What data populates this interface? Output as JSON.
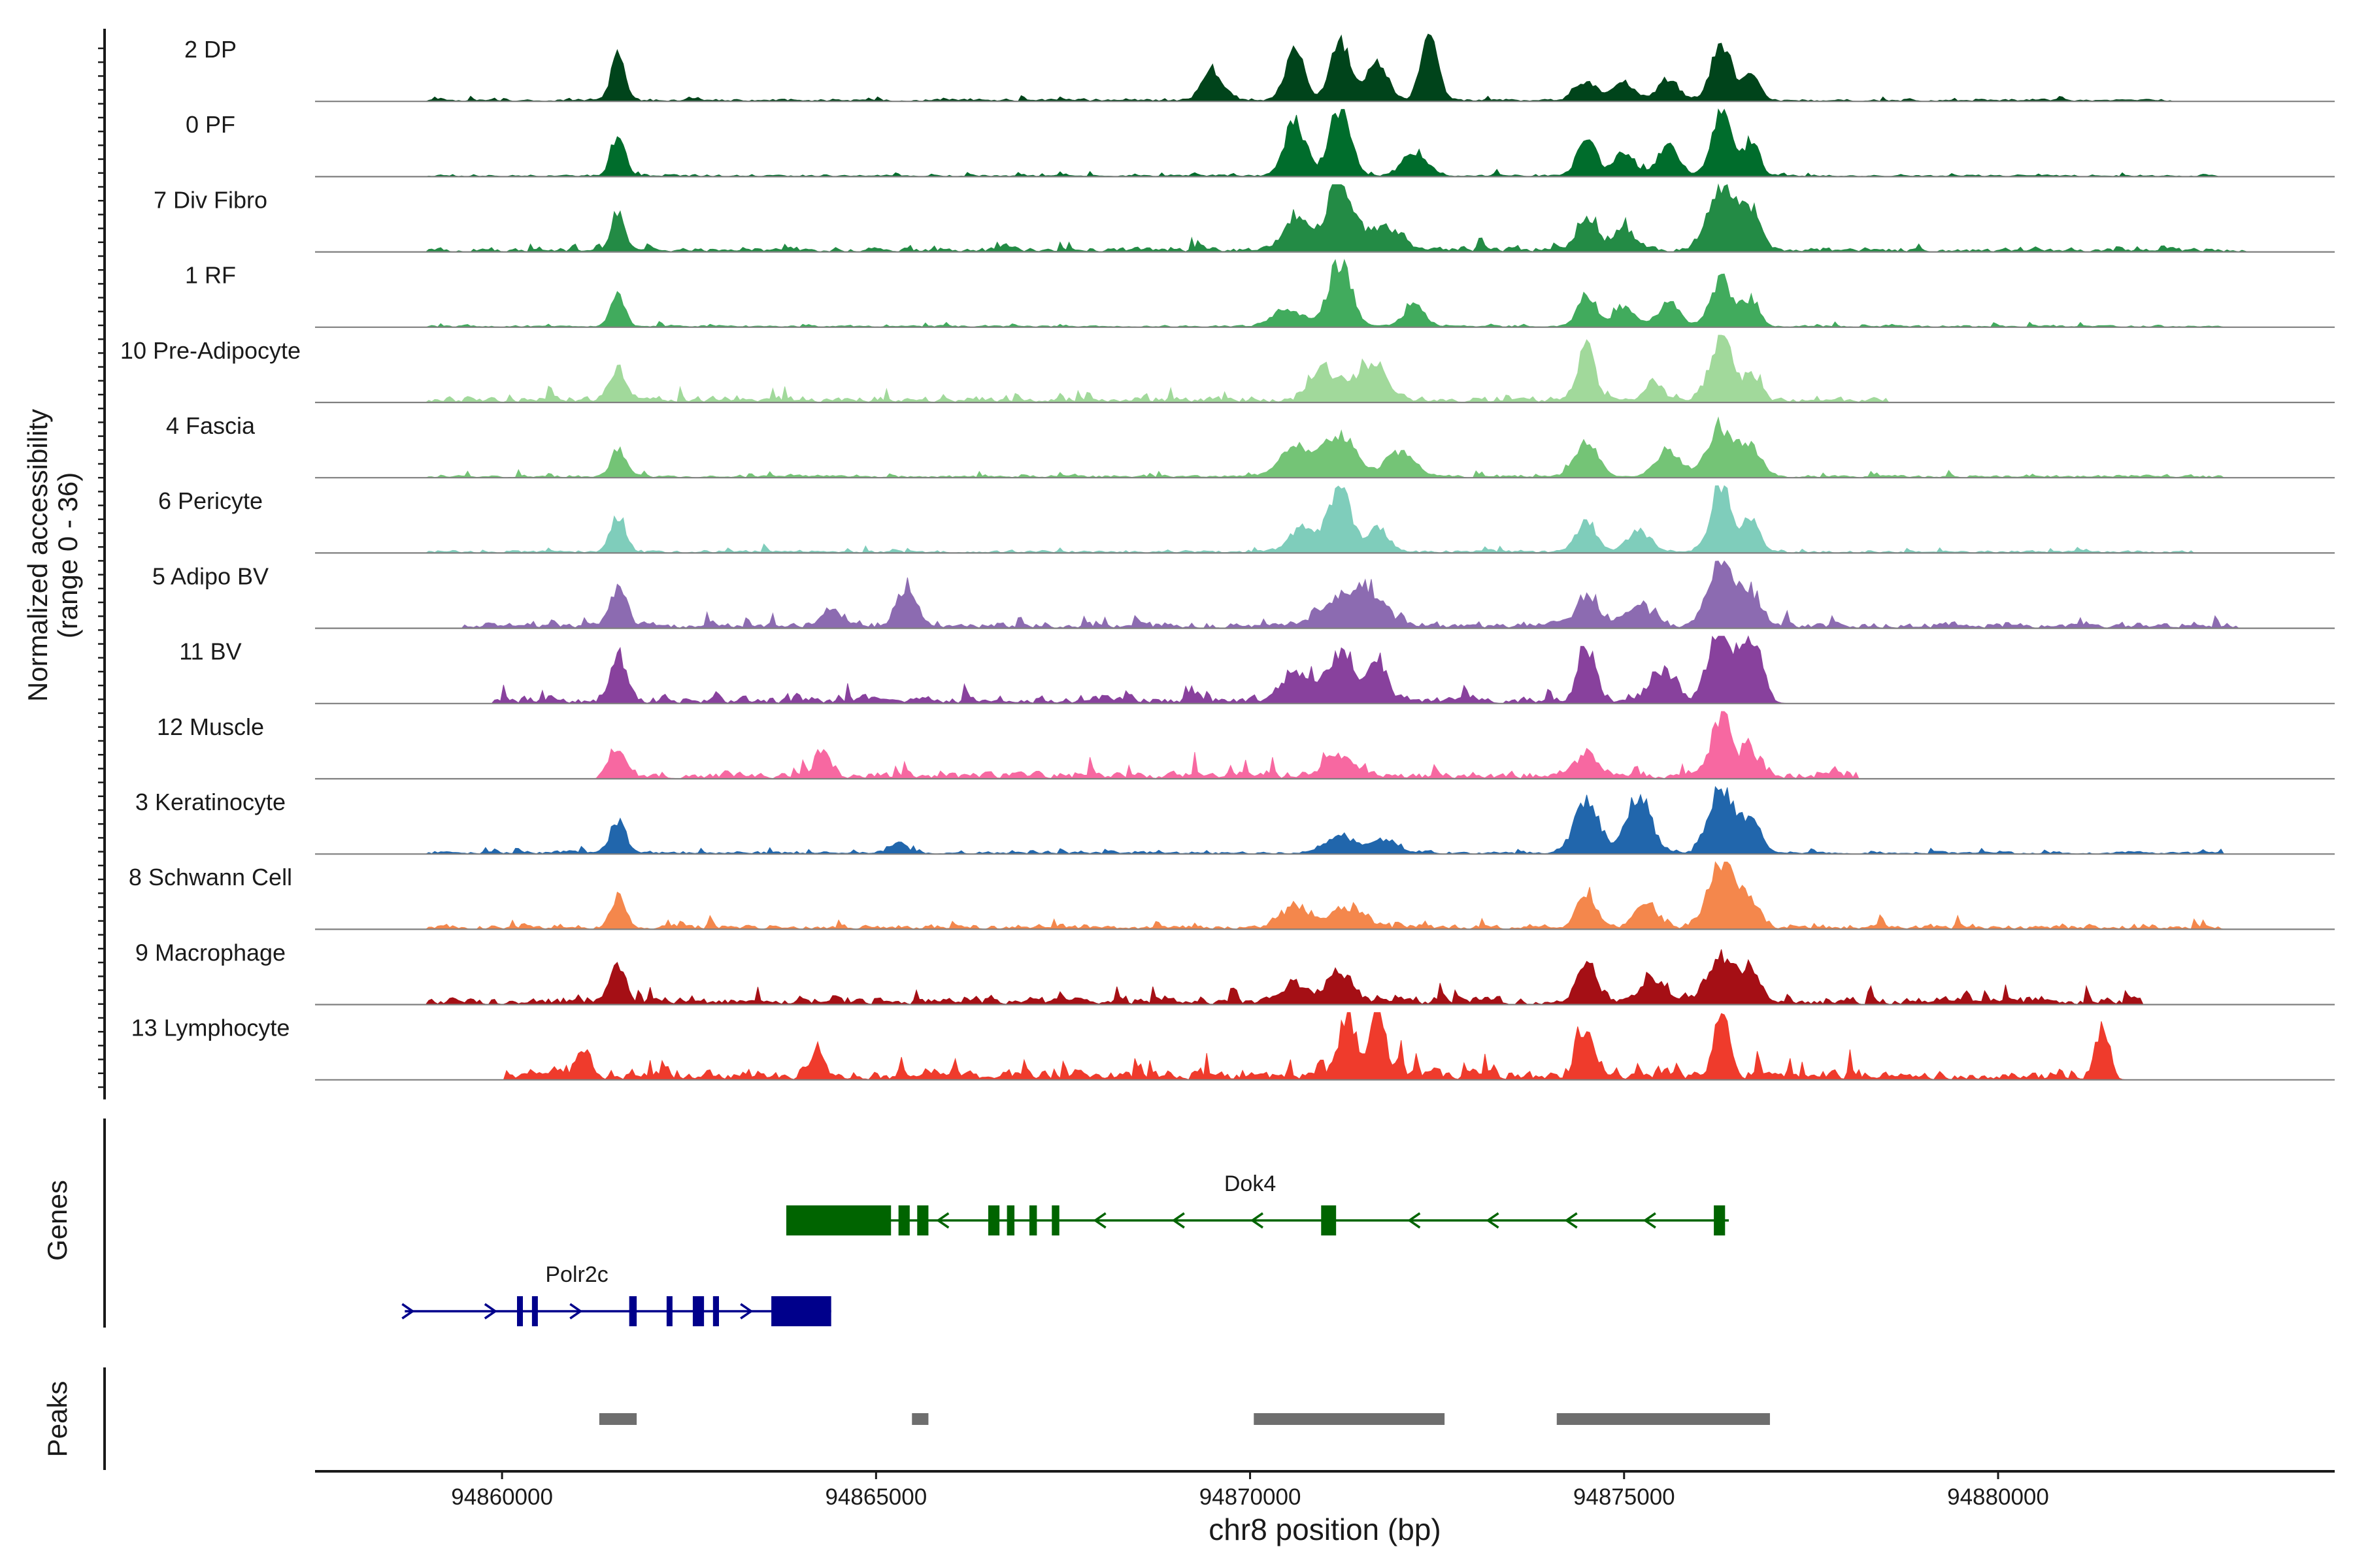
{
  "chart_data": {
    "type": "area",
    "title": "",
    "xlabel": "chr8 position (bp)",
    "ylabel_line1": "Normalized accessibility",
    "ylabel_line2": "(range 0 - 36)",
    "y_range": [
      0,
      36
    ],
    "xlim": [
      94857500,
      94884500
    ],
    "x_ticks": [
      94860000,
      94865000,
      94870000,
      94875000,
      94880000
    ],
    "x_tick_labels": [
      "94860000",
      "94865000",
      "94870000",
      "94875000",
      "94880000"
    ],
    "genes_label": "Genes",
    "peaks_label": "Peaks",
    "tracks": [
      {
        "label": "2 DP",
        "color": "#00441b",
        "peaks": [
          [
            94861550,
            0.75,
            90
          ],
          [
            94869500,
            0.45,
            140
          ],
          [
            94870600,
            0.75,
            130
          ],
          [
            94871200,
            0.85,
            130
          ],
          [
            94871700,
            0.55,
            140
          ],
          [
            94872400,
            1.0,
            110
          ],
          [
            94874500,
            0.25,
            160
          ],
          [
            94875000,
            0.3,
            130
          ],
          [
            94875600,
            0.3,
            140
          ],
          [
            94876300,
            0.85,
            130
          ],
          [
            94876700,
            0.4,
            110
          ]
        ],
        "noise": 0.04,
        "range": [
          94859000,
          94882300
        ]
      },
      {
        "label": "0 PF",
        "color": "#006d2c",
        "peaks": [
          [
            94861550,
            0.62,
            90
          ],
          [
            94870600,
            0.8,
            140
          ],
          [
            94871200,
            1.0,
            140
          ],
          [
            94872200,
            0.35,
            160
          ],
          [
            94874500,
            0.55,
            120
          ],
          [
            94875000,
            0.35,
            140
          ],
          [
            94875600,
            0.45,
            140
          ],
          [
            94876300,
            1.0,
            130
          ],
          [
            94876700,
            0.5,
            110
          ]
        ],
        "noise": 0.03,
        "range": [
          94859000,
          94883000
        ]
      },
      {
        "label": "7 Div Fibro",
        "color": "#238b45",
        "peaks": [
          [
            94861550,
            0.6,
            90
          ],
          [
            94870600,
            0.5,
            160
          ],
          [
            94871200,
            1.0,
            180
          ],
          [
            94871800,
            0.35,
            200
          ],
          [
            94874500,
            0.45,
            140
          ],
          [
            94875000,
            0.3,
            150
          ],
          [
            94876300,
            1.0,
            170
          ],
          [
            94876700,
            0.6,
            130
          ]
        ],
        "noise": 0.07,
        "range": [
          94859000,
          94883300
        ]
      },
      {
        "label": "1 RF",
        "color": "#41ab5d",
        "peaks": [
          [
            94861550,
            0.48,
            90
          ],
          [
            94870500,
            0.25,
            200
          ],
          [
            94871200,
            0.95,
            150
          ],
          [
            94872200,
            0.3,
            140
          ],
          [
            94874500,
            0.5,
            120
          ],
          [
            94875000,
            0.3,
            130
          ],
          [
            94875600,
            0.35,
            140
          ],
          [
            94876300,
            0.7,
            150
          ],
          [
            94876700,
            0.4,
            110
          ]
        ],
        "noise": 0.03,
        "range": [
          94859000,
          94883000
        ]
      },
      {
        "label": "10 Pre-Adipocyte",
        "color": "#a1d99b",
        "peaks": [
          [
            94861550,
            0.45,
            110
          ],
          [
            94871000,
            0.45,
            180
          ],
          [
            94871600,
            0.55,
            200
          ],
          [
            94874500,
            0.8,
            110
          ],
          [
            94875400,
            0.3,
            120
          ],
          [
            94876300,
            1.0,
            140
          ],
          [
            94876700,
            0.4,
            110
          ]
        ],
        "noise": 0.09,
        "range": [
          94859000,
          94878500
        ]
      },
      {
        "label": "4 Fascia",
        "color": "#74c476",
        "peaks": [
          [
            94861550,
            0.4,
            100
          ],
          [
            94870600,
            0.45,
            200
          ],
          [
            94871200,
            0.65,
            200
          ],
          [
            94872000,
            0.35,
            200
          ],
          [
            94874500,
            0.5,
            150
          ],
          [
            94875600,
            0.4,
            160
          ],
          [
            94876300,
            0.7,
            180
          ],
          [
            94876700,
            0.45,
            130
          ]
        ],
        "noise": 0.04,
        "range": [
          94859000,
          94883000
        ]
      },
      {
        "label": "6 Pericyte",
        "color": "#7fcdbb",
        "peaks": [
          [
            94861550,
            0.55,
            100
          ],
          [
            94870700,
            0.35,
            180
          ],
          [
            94871200,
            0.95,
            150
          ],
          [
            94871700,
            0.35,
            140
          ],
          [
            94874500,
            0.45,
            130
          ],
          [
            94875200,
            0.3,
            160
          ],
          [
            94876300,
            1.0,
            140
          ],
          [
            94876700,
            0.45,
            120
          ]
        ],
        "noise": 0.04,
        "range": [
          94859000,
          94882600
        ]
      },
      {
        "label": "5 Adipo BV",
        "color": "#8c6bb1",
        "peaks": [
          [
            94861550,
            0.55,
            110
          ],
          [
            94864400,
            0.3,
            110
          ],
          [
            94865400,
            0.6,
            130
          ],
          [
            94871200,
            0.35,
            240
          ],
          [
            94871600,
            0.45,
            220
          ],
          [
            94874500,
            0.45,
            150
          ],
          [
            94875200,
            0.3,
            180
          ],
          [
            94876300,
            1.0,
            170
          ],
          [
            94876700,
            0.45,
            140
          ]
        ],
        "noise": 0.09,
        "range": [
          94859500,
          94883200
        ]
      },
      {
        "label": "11 BV",
        "color": "#88419d",
        "peaks": [
          [
            94861550,
            0.65,
            100
          ],
          [
            94870600,
            0.45,
            180
          ],
          [
            94871200,
            0.75,
            160
          ],
          [
            94871700,
            0.55,
            140
          ],
          [
            94874500,
            0.8,
            110
          ],
          [
            94875500,
            0.45,
            160
          ],
          [
            94876300,
            1.0,
            170
          ],
          [
            94876700,
            0.8,
            140
          ]
        ],
        "noise": 0.12,
        "range": [
          94859900,
          94877000
        ]
      },
      {
        "label": "12 Muscle",
        "color": "#f768a1",
        "peaks": [
          [
            94861550,
            0.35,
            110
          ],
          [
            94864300,
            0.35,
            100
          ],
          [
            94871200,
            0.3,
            200
          ],
          [
            94874500,
            0.35,
            150
          ],
          [
            94876300,
            0.9,
            130
          ],
          [
            94876700,
            0.35,
            110
          ]
        ],
        "noise": 0.12,
        "range": [
          94861300,
          94878100
        ]
      },
      {
        "label": "3 Keratinocyte",
        "color": "#2166ac",
        "peaks": [
          [
            94861550,
            0.5,
            100
          ],
          [
            94865300,
            0.15,
            120
          ],
          [
            94871200,
            0.25,
            200
          ],
          [
            94871800,
            0.2,
            180
          ],
          [
            94874500,
            0.8,
            160
          ],
          [
            94875200,
            0.85,
            160
          ],
          [
            94876300,
            1.0,
            160
          ],
          [
            94876700,
            0.45,
            130
          ]
        ],
        "noise": 0.04,
        "range": [
          94859000,
          94883000
        ]
      },
      {
        "label": "8 Schwann Cell",
        "color": "#f4874c",
        "peaks": [
          [
            94861550,
            0.45,
            100
          ],
          [
            94870600,
            0.3,
            200
          ],
          [
            94871300,
            0.3,
            220
          ],
          [
            94874500,
            0.5,
            130
          ],
          [
            94875300,
            0.35,
            140
          ],
          [
            94876300,
            1.0,
            170
          ],
          [
            94876700,
            0.4,
            130
          ]
        ],
        "noise": 0.07,
        "range": [
          94859000,
          94883000
        ]
      },
      {
        "label": "9 Macrophage",
        "color": "#a50f15",
        "peaks": [
          [
            94861550,
            0.55,
            100
          ],
          [
            94870600,
            0.3,
            160
          ],
          [
            94871200,
            0.45,
            160
          ],
          [
            94874500,
            0.6,
            130
          ],
          [
            94875400,
            0.3,
            170
          ],
          [
            94876300,
            0.65,
            170
          ],
          [
            94876700,
            0.45,
            140
          ]
        ],
        "noise": 0.12,
        "range": [
          94859000,
          94881900
        ]
      },
      {
        "label": "13 Lymphocyte",
        "color": "#ef3b2c",
        "peaks": [
          [
            94861100,
            0.45,
            90
          ],
          [
            94864200,
            0.4,
            90
          ],
          [
            94871300,
            0.9,
            120
          ],
          [
            94871700,
            1.0,
            100
          ],
          [
            94874500,
            0.6,
            120
          ],
          [
            94876300,
            1.0,
            100
          ],
          [
            94881400,
            0.6,
            90
          ]
        ],
        "noise": 0.16,
        "range": [
          94860000,
          94881600
        ]
      }
    ],
    "genes": [
      {
        "name": "Dok4",
        "strand": "-",
        "color": "#006400",
        "start": 94863800,
        "end": 94876400,
        "label_pos": 94870000,
        "exons": [
          [
            94863800,
            94865200
          ],
          [
            94865300,
            94865450
          ],
          [
            94865550,
            94865700
          ],
          [
            94866500,
            94866650
          ],
          [
            94866750,
            94866850
          ],
          [
            94867050,
            94867150
          ],
          [
            94867350,
            94867450
          ],
          [
            94870950,
            94871150
          ],
          [
            94876200,
            94876350
          ]
        ]
      },
      {
        "name": "Polr2c",
        "strand": "+",
        "color": "#00008b",
        "start": 94858700,
        "end": 94864400,
        "label_pos": 94861000,
        "exons": [
          [
            94860200,
            94860260
          ],
          [
            94860400,
            94860450
          ],
          [
            94861700,
            94861800
          ],
          [
            94862200,
            94862250
          ],
          [
            94862550,
            94862700
          ],
          [
            94862820,
            94862900
          ],
          [
            94863600,
            94864400
          ]
        ]
      }
    ],
    "peaks": [
      [
        94861300,
        94861800
      ],
      [
        94865480,
        94865700
      ],
      [
        94870050,
        94872600
      ],
      [
        94874100,
        94876950
      ]
    ]
  }
}
